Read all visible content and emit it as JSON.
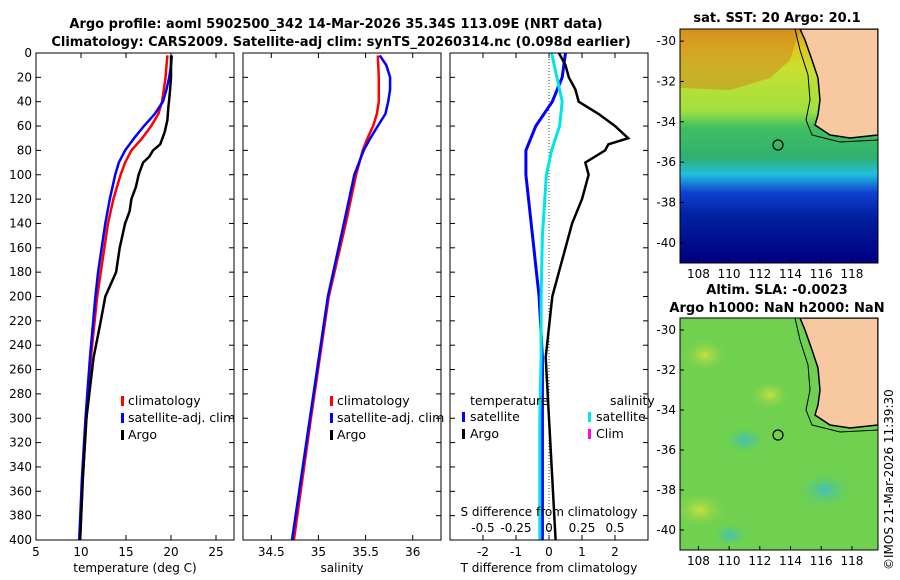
{
  "title": {
    "line1": "Argo profile: aoml 5902500_342 14-Mar-2026 35.34S 113.09E (NRT data)",
    "line2": "Climatology: CARS2009. Satellite-adj clim: synTS_20260314.nc (0.098d earlier)"
  },
  "colors": {
    "climatology": "#ff0000",
    "satellite": "#0000ff",
    "argo": "#000000",
    "sat_t": "#0000ff",
    "sat_s": "#00e5e5",
    "sal_cl": "#ff00ff"
  },
  "chart_data": [
    {
      "type": "line",
      "name": "temperature-profile",
      "xlabel": "temperature (deg C)",
      "xlim": [
        5,
        27
      ],
      "ylim": [
        0,
        400
      ],
      "xticks": [
        "5",
        "10",
        "15",
        "20",
        "25"
      ],
      "yticks": [
        "0",
        "20",
        "40",
        "60",
        "80",
        "100",
        "120",
        "140",
        "160",
        "180",
        "200",
        "220",
        "240",
        "260",
        "280",
        "300",
        "320",
        "340",
        "360",
        "380",
        "400"
      ],
      "legend": [
        "climatology",
        "satellite-adj. clim",
        "Argo"
      ],
      "series": [
        {
          "name": "climatology",
          "depth": [
            2,
            10,
            20,
            30,
            40,
            50,
            60,
            70,
            80,
            90,
            100,
            110,
            120,
            140,
            160,
            180,
            200,
            250,
            300,
            350,
            400
          ],
          "values": [
            19.6,
            19.5,
            19.4,
            19.2,
            19.0,
            18.6,
            17.8,
            16.8,
            15.6,
            14.9,
            14.4,
            14.0,
            13.6,
            13.0,
            12.6,
            12.2,
            11.8,
            11.1,
            10.6,
            10.2,
            9.9
          ]
        },
        {
          "name": "satellite-adj. clim",
          "depth": [
            2,
            10,
            20,
            30,
            40,
            50,
            60,
            70,
            80,
            90,
            100,
            110,
            120,
            140,
            160,
            180,
            200,
            250,
            300,
            350,
            400
          ],
          "values": [
            20.1,
            20.0,
            19.8,
            19.5,
            19.1,
            18.2,
            17.0,
            15.9,
            14.9,
            14.2,
            13.8,
            13.5,
            13.2,
            12.7,
            12.3,
            11.9,
            11.6,
            11.0,
            10.5,
            10.1,
            9.8
          ]
        },
        {
          "name": "Argo",
          "depth": [
            2,
            10,
            20,
            30,
            38,
            45,
            55,
            65,
            75,
            80,
            85,
            90,
            100,
            110,
            120,
            130,
            140,
            150,
            160,
            180,
            200,
            220,
            250,
            300,
            350,
            400
          ],
          "values": [
            20.0,
            20.0,
            20.0,
            19.9,
            19.8,
            19.7,
            19.6,
            19.3,
            18.8,
            18.0,
            17.6,
            16.9,
            16.4,
            16.1,
            15.6,
            15.4,
            14.9,
            14.6,
            14.3,
            13.9,
            12.7,
            12.2,
            11.4,
            10.6,
            10.2,
            9.9
          ]
        }
      ]
    },
    {
      "type": "line",
      "name": "salinity-profile",
      "xlabel": "salinity",
      "xlim": [
        34.2,
        36.3
      ],
      "ylim": [
        0,
        400
      ],
      "xticks": [
        "34.5",
        "35",
        "35.5",
        "36"
      ],
      "legend": [
        "climatology",
        "satellite-adj. clim",
        "Argo"
      ],
      "series": [
        {
          "name": "climatology",
          "depth": [
            2,
            20,
            40,
            50,
            60,
            70,
            80,
            100,
            140,
            200,
            300,
            400
          ],
          "values": [
            35.63,
            35.64,
            35.64,
            35.62,
            35.58,
            35.52,
            35.47,
            35.4,
            35.29,
            35.11,
            34.92,
            34.74
          ]
        },
        {
          "name": "satellite-adj. clim",
          "depth": [
            2,
            10,
            20,
            30,
            40,
            50,
            60,
            70,
            80,
            100,
            140,
            200,
            300,
            400
          ],
          "values": [
            35.65,
            35.72,
            35.76,
            35.76,
            35.74,
            35.71,
            35.63,
            35.55,
            35.48,
            35.38,
            35.27,
            35.1,
            34.91,
            34.72
          ]
        },
        {
          "name": "Argo",
          "depth": [],
          "values": []
        }
      ]
    },
    {
      "type": "line",
      "name": "difference-profile",
      "xlabel": "T difference from climatology",
      "xlabel_top": "S difference from climatology",
      "xlim": [
        -3,
        3
      ],
      "ylim": [
        0,
        400
      ],
      "xticks": [
        "-2",
        "-1",
        "0",
        "1",
        "2"
      ],
      "xticks_top": [
        "-0.5",
        "-0.25",
        "0",
        "0.25",
        "0.5"
      ],
      "legend_titles": [
        "temperature",
        "salinity"
      ],
      "legend_temperature": [
        "satellite",
        "Argo"
      ],
      "legend_salinity": [
        "satellite",
        "Clim"
      ],
      "series": [
        {
          "name": "T satellite",
          "depth": [
            0,
            20,
            40,
            60,
            80,
            100,
            150,
            200,
            250,
            300,
            350,
            400
          ],
          "values": [
            0.5,
            0.4,
            0.1,
            -0.4,
            -0.7,
            -0.7,
            -0.5,
            -0.3,
            -0.2,
            -0.2,
            -0.2,
            -0.2
          ]
        },
        {
          "name": "T Argo",
          "depth": [
            0,
            10,
            20,
            30,
            40,
            50,
            60,
            70,
            75,
            80,
            90,
            100,
            120,
            140,
            160,
            180,
            200,
            250,
            300,
            350,
            400
          ],
          "values": [
            0.3,
            0.5,
            0.6,
            0.8,
            0.9,
            1.5,
            2.0,
            2.4,
            1.8,
            1.7,
            1.1,
            1.2,
            1.0,
            0.7,
            0.5,
            0.3,
            0.1,
            -0.1,
            0.0,
            0.1,
            0.2
          ]
        },
        {
          "name": "S satellite",
          "depth": [
            0,
            20,
            40,
            60,
            80,
            100,
            150,
            200,
            250,
            300,
            350,
            400
          ],
          "values": [
            0.02,
            0.06,
            0.1,
            0.08,
            0.02,
            -0.02,
            -0.05,
            -0.06,
            -0.06,
            -0.07,
            -0.07,
            -0.07
          ]
        }
      ]
    }
  ],
  "maps": {
    "sst": {
      "title": "sat. SST: 20 Argo: 20.1",
      "xticks": [
        "108",
        "110",
        "112",
        "114",
        "116",
        "118"
      ],
      "yticks": [
        "-30",
        "-32",
        "-34",
        "-36",
        "-38",
        "-40"
      ]
    },
    "sla": {
      "title1": "Altim. SLA: -0.0023",
      "title2": "Argo h1000: NaN h2000: NaN",
      "xticks": [
        "108",
        "110",
        "112",
        "114",
        "116",
        "118"
      ],
      "yticks": [
        "-30",
        "-32",
        "-34",
        "-36",
        "-38",
        "-40"
      ]
    }
  },
  "watermark": "©IMOS 21-Mar-2026 11:39:30"
}
